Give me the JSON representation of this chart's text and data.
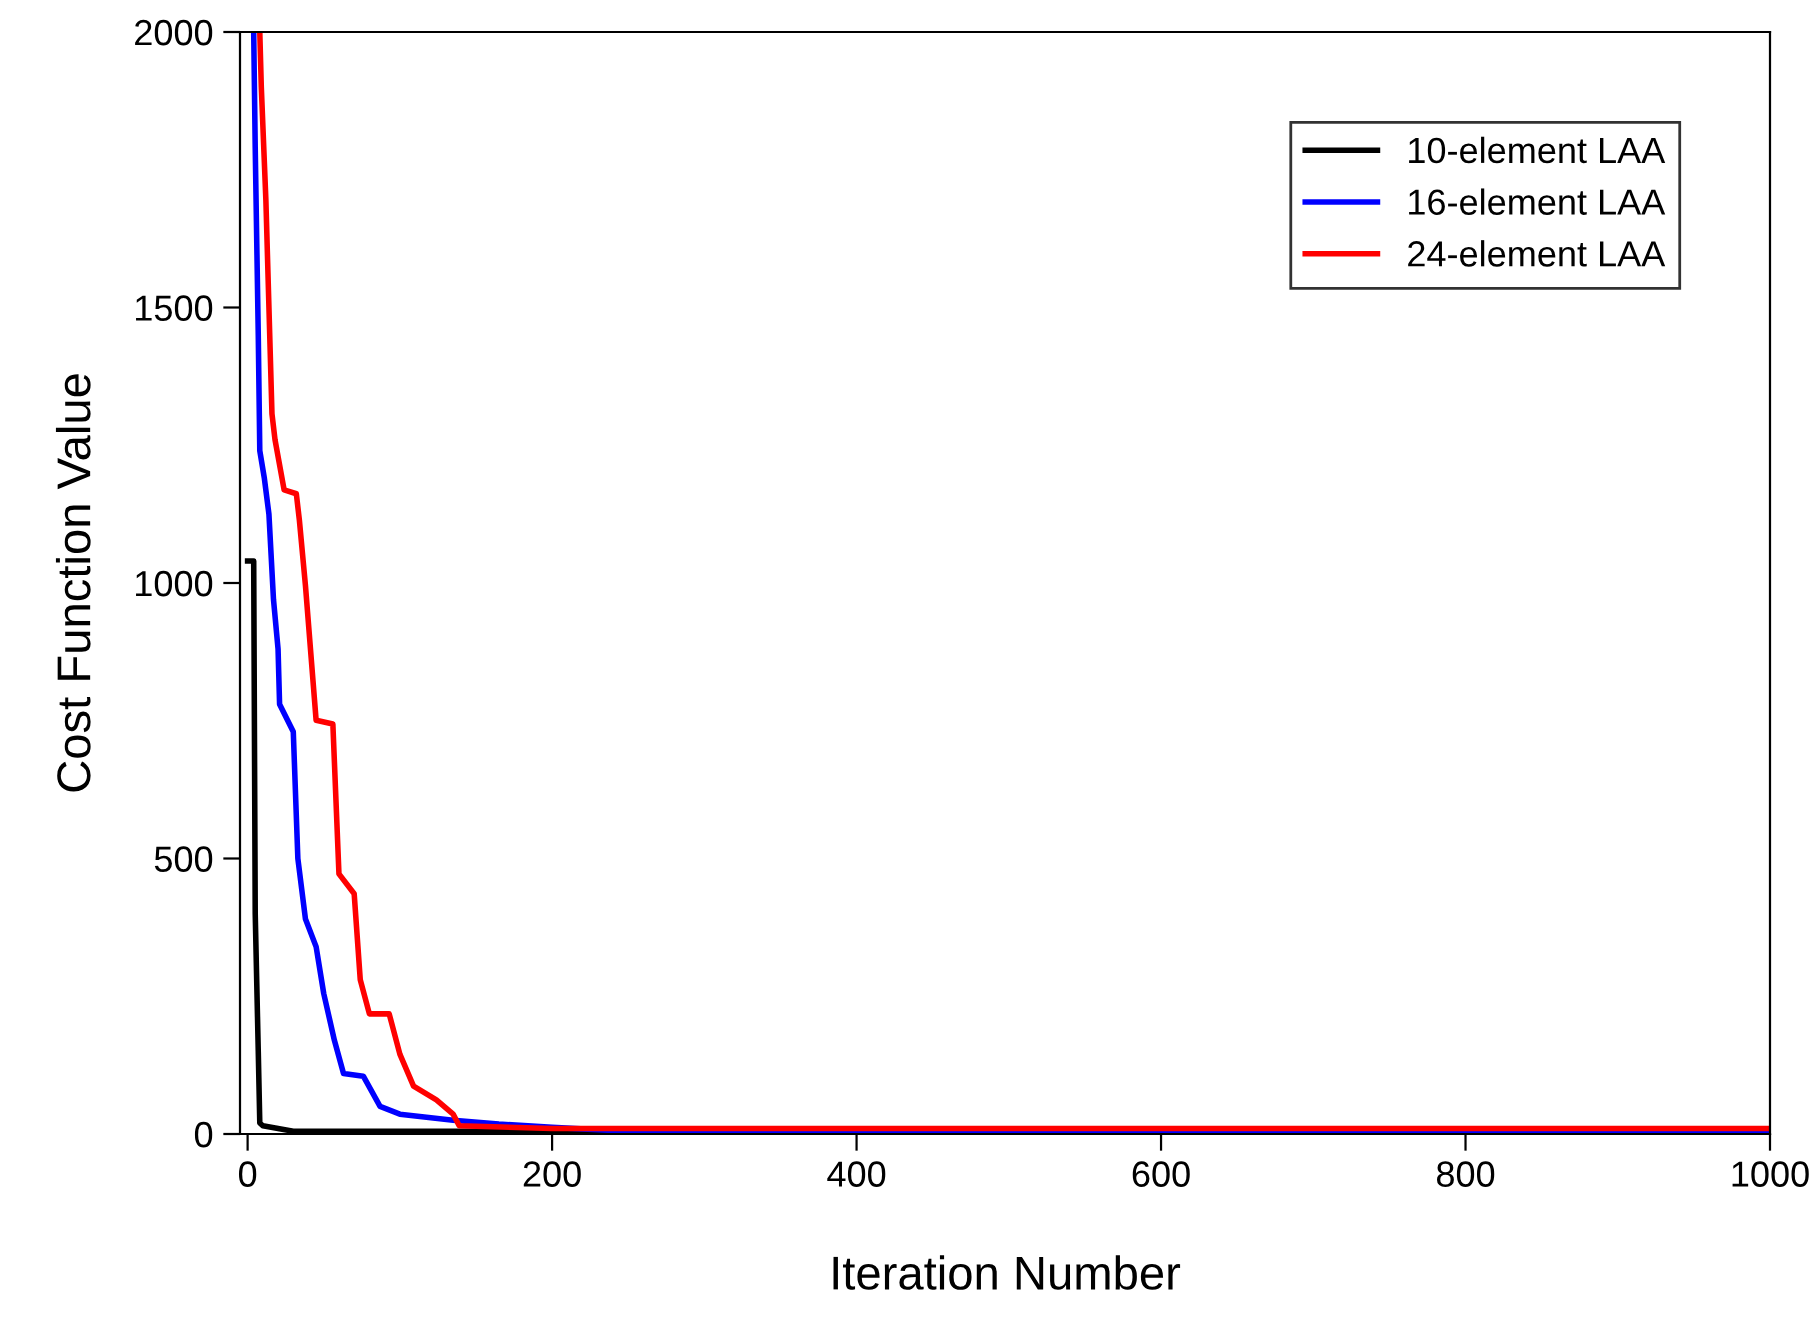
{
  "chart_data": {
    "type": "line",
    "xlabel": "Iteration Number",
    "ylabel": "Cost Function Value",
    "xlim": [
      -5,
      1000
    ],
    "ylim": [
      0,
      2000
    ],
    "xticks": [
      0,
      200,
      400,
      600,
      800,
      1000
    ],
    "yticks": [
      0,
      500,
      1000,
      1500,
      2000
    ],
    "grid": false,
    "legend": "top right",
    "marker": "none",
    "line_style": "solid",
    "series": [
      {
        "name": "10-element LAA",
        "color": "#000000",
        "x": [
          0,
          4,
          5,
          7,
          8,
          10,
          20,
          30,
          1000
        ],
        "values": [
          1040,
          1040,
          400,
          150,
          20,
          15,
          10,
          5,
          5
        ]
      },
      {
        "name": "16-element LAA",
        "color": "#0000ff",
        "x": [
          4,
          5,
          7,
          8,
          11,
          14,
          17,
          20,
          21,
          30,
          33,
          38,
          45,
          50,
          57,
          63,
          76,
          87,
          100,
          135,
          165,
          200,
          250,
          400,
          1000
        ],
        "values": [
          2000,
          1790,
          1450,
          1240,
          1190,
          1125,
          970,
          880,
          780,
          730,
          500,
          390,
          340,
          255,
          170,
          110,
          105,
          50,
          36,
          25,
          18,
          12,
          5,
          3,
          3
        ]
      },
      {
        "name": "24-element LAA",
        "color": "#ff0000",
        "x": [
          8,
          9,
          12,
          16,
          18,
          24,
          32,
          34,
          38,
          45,
          56,
          60,
          70,
          74,
          80,
          93,
          100,
          109,
          124,
          135,
          139,
          200,
          1000
        ],
        "values": [
          2000,
          1900,
          1695,
          1307,
          1260,
          1169,
          1162,
          1114,
          995,
          751,
          744,
          472,
          436,
          280,
          218,
          218,
          145,
          87,
          62,
          36,
          15,
          10,
          10
        ]
      }
    ]
  }
}
